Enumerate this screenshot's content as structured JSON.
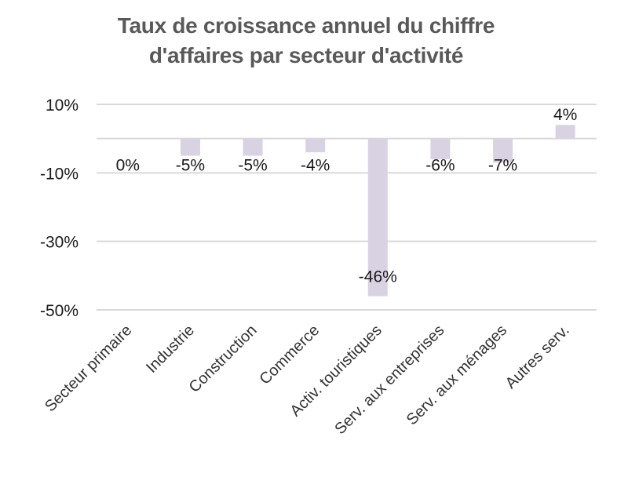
{
  "chart_data": {
    "type": "bar",
    "title_lines": [
      "Taux de croissance annuel du chiffre",
      "d'affaires par secteur d'activité"
    ],
    "categories": [
      "Secteur primaire",
      "Industrie",
      "Construction",
      "Commerce",
      "Activ. touristiques",
      "Serv. aux entreprises",
      "Serv. aux ménages",
      "Autres serv."
    ],
    "values": [
      0,
      -5,
      -5,
      -4,
      -46,
      -6,
      -7,
      4
    ],
    "data_labels": [
      "0%",
      "-5%",
      "-5%",
      "-4%",
      "-46%",
      "-6%",
      "-7%",
      "4%"
    ],
    "y_ticks": [
      10,
      -10,
      -30,
      -50
    ],
    "y_tick_labels": [
      "10%",
      "-10%",
      "-30%",
      "-50%"
    ],
    "ylim": [
      -50,
      10
    ],
    "gridlines": [
      10,
      0,
      -10,
      -30,
      -50
    ],
    "xlabel": "",
    "ylabel": "",
    "bar_color": "#d9d2e3",
    "grid_color": "#d9d9d9",
    "legend": "none"
  }
}
